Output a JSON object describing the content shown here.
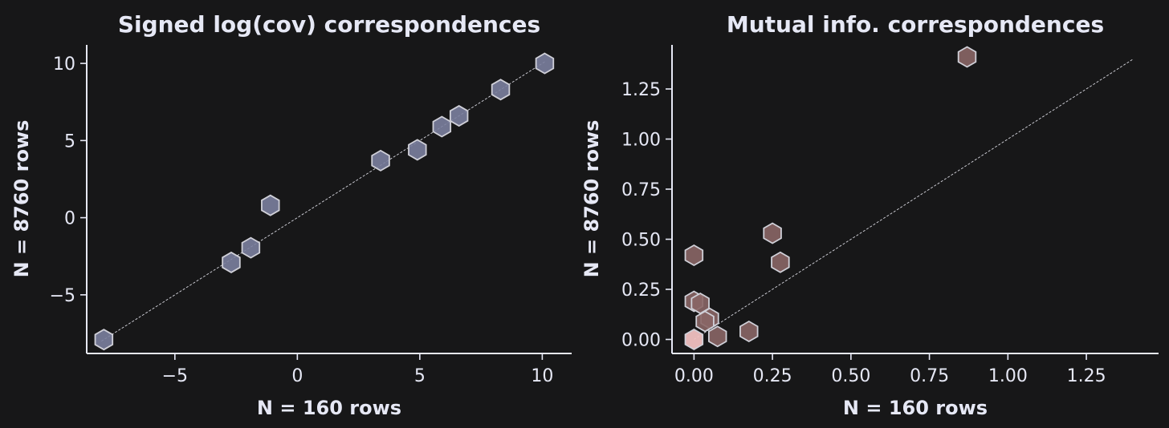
{
  "chart_data": [
    {
      "type": "scatter",
      "title": "Signed log(cov) correspondences",
      "xlabel": "N = 160 rows",
      "ylabel": "N = 8760 rows",
      "xlim": [
        -8.6,
        11.2
      ],
      "ylim": [
        -8.8,
        11.2
      ],
      "xticks": [
        -5,
        0,
        5,
        10
      ],
      "yticks": [
        -5,
        0,
        5,
        10
      ],
      "xtick_labels": [
        "−5",
        "0",
        "5",
        "10"
      ],
      "ytick_labels": [
        "−5",
        "0",
        "5",
        "10"
      ],
      "reference_line": [
        [
          -8,
          -8
        ],
        [
          10.1,
          10.1
        ]
      ],
      "marker": "hexagon",
      "marker_color": "#7b7f9e",
      "points": [
        {
          "x": -7.9,
          "y": -7.9
        },
        {
          "x": -2.7,
          "y": -2.9
        },
        {
          "x": -1.9,
          "y": -1.95
        },
        {
          "x": -1.1,
          "y": 0.8
        },
        {
          "x": 3.4,
          "y": 3.7
        },
        {
          "x": 4.9,
          "y": 4.4
        },
        {
          "x": 5.9,
          "y": 5.9
        },
        {
          "x": 6.6,
          "y": 6.6
        },
        {
          "x": 8.3,
          "y": 8.3
        },
        {
          "x": 10.1,
          "y": 10.0
        }
      ]
    },
    {
      "type": "scatter",
      "title": "Mutual info. correspondences",
      "xlabel": "N = 160 rows",
      "ylabel": "N = 8760 rows",
      "xlim": [
        -0.07,
        1.48
      ],
      "ylim": [
        -0.07,
        1.47
      ],
      "xticks": [
        0,
        0.25,
        0.5,
        0.75,
        1.0,
        1.25
      ],
      "yticks": [
        0,
        0.25,
        0.5,
        0.75,
        1.0,
        1.25
      ],
      "xtick_labels": [
        "0.00",
        "0.25",
        "0.50",
        "0.75",
        "1.00",
        "1.25"
      ],
      "ytick_labels": [
        "0.00",
        "0.25",
        "0.50",
        "0.75",
        "1.00",
        "1.25"
      ],
      "reference_line": [
        [
          0,
          0
        ],
        [
          1.4,
          1.4
        ]
      ],
      "marker": "hexagon",
      "marker_color": "#8a6666",
      "highlight_color": "#f0c0c0",
      "points": [
        {
          "x": 0.87,
          "y": 1.41
        },
        {
          "x": 0.25,
          "y": 0.53
        },
        {
          "x": 0.275,
          "y": 0.385
        },
        {
          "x": 0.0,
          "y": 0.42
        },
        {
          "x": 0.0,
          "y": 0.19
        },
        {
          "x": 0.02,
          "y": 0.18
        },
        {
          "x": 0.05,
          "y": 0.105
        },
        {
          "x": 0.035,
          "y": 0.09
        },
        {
          "x": 0.175,
          "y": 0.04
        },
        {
          "x": 0.075,
          "y": 0.015
        },
        {
          "x": 0.0,
          "y": 0.0,
          "highlight": true
        }
      ]
    }
  ]
}
